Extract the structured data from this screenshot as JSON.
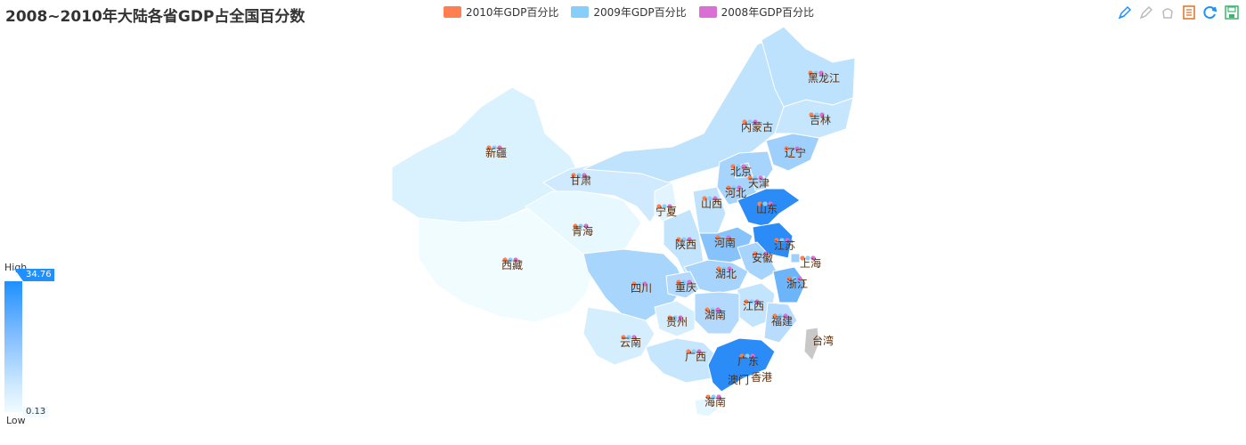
{
  "title": "2008~2010年大陆各省GDP占全国百分数",
  "legend": [
    {
      "label": "2010年GDP百分比",
      "color": "#ff7f50"
    },
    {
      "label": "2009年GDP百分比",
      "color": "#87cefa"
    },
    {
      "label": "2008年GDP百分比",
      "color": "#da70d6"
    }
  ],
  "toolbox": [
    "mark-icon",
    "mark-undo-icon",
    "mark-clear-icon",
    "data-view-icon",
    "restore-icon",
    "save-image-icon"
  ],
  "range": {
    "high_label": "High",
    "low_label": "Low",
    "max": "34.76",
    "min": "0.13"
  },
  "provinces": [
    "黑龙江",
    "吉林",
    "内蒙古",
    "辽宁",
    "新疆",
    "北京",
    "天津",
    "甘肃",
    "河北",
    "宁夏",
    "山西",
    "山东",
    "青海",
    "陕西",
    "河南",
    "江苏",
    "安徽",
    "上海",
    "西藏",
    "四川",
    "湖北",
    "浙江",
    "重庆",
    "江西",
    "湖南",
    "贵州",
    "福建",
    "云南",
    "台湾",
    "广西",
    "广东",
    "澳门",
    "香港",
    "海南"
  ]
}
